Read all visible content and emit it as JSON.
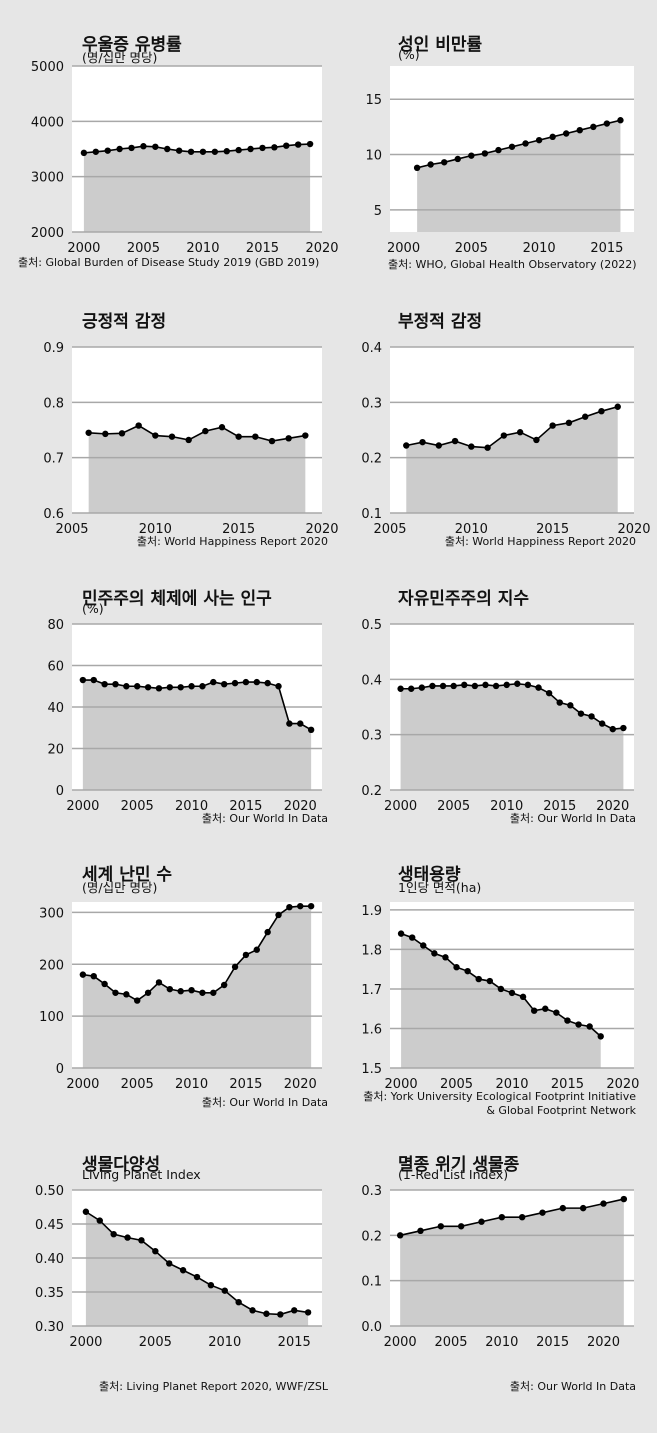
{
  "source_prefix": "출처:",
  "chart_data": [
    {
      "id": "c1",
      "type": "area",
      "title": "우울증 유병률",
      "subtitle": "(명/십만 명당)",
      "source": [
        "Global Burden of Disease Study 2019 (GBD 2019)"
      ],
      "x": [
        2000,
        2001,
        2002,
        2003,
        2004,
        2005,
        2006,
        2007,
        2008,
        2009,
        2010,
        2011,
        2012,
        2013,
        2014,
        2015,
        2016,
        2017,
        2018,
        2019
      ],
      "y": [
        3430,
        3450,
        3470,
        3500,
        3520,
        3550,
        3540,
        3500,
        3470,
        3450,
        3450,
        3450,
        3460,
        3480,
        3500,
        3520,
        3530,
        3560,
        3580,
        3590
      ],
      "xlim": [
        1999,
        2020
      ],
      "ylim": [
        2000,
        5000
      ],
      "yticks": [
        2000,
        3000,
        4000,
        5000
      ],
      "xticks": [
        2000,
        2005,
        2010,
        2015,
        2020
      ],
      "grid": true,
      "legend": "none"
    },
    {
      "id": "c2",
      "type": "area",
      "title": "성인 비만률",
      "subtitle": "(%)",
      "source": [
        "WHO, Global Health Observatory (2022)"
      ],
      "x": [
        2001,
        2002,
        2003,
        2004,
        2005,
        2006,
        2007,
        2008,
        2009,
        2010,
        2011,
        2012,
        2013,
        2014,
        2015,
        2016
      ],
      "y": [
        8.8,
        9.1,
        9.3,
        9.6,
        9.9,
        10.1,
        10.4,
        10.7,
        11.0,
        11.3,
        11.6,
        11.9,
        12.2,
        12.5,
        12.8,
        13.1
      ],
      "xlim": [
        1999,
        2017
      ],
      "ylim": [
        3,
        18
      ],
      "yticks": [
        5,
        10,
        15
      ],
      "xticks": [
        2000,
        2005,
        2010,
        2015
      ],
      "grid": true,
      "legend": "none"
    },
    {
      "id": "c3",
      "type": "area",
      "title": "긍정적 감정",
      "subtitle": "",
      "source": [
        "World Happiness Report 2020"
      ],
      "x": [
        2006,
        2007,
        2008,
        2009,
        2010,
        2011,
        2012,
        2013,
        2014,
        2015,
        2016,
        2017,
        2018,
        2019
      ],
      "y": [
        0.745,
        0.743,
        0.744,
        0.758,
        0.74,
        0.738,
        0.732,
        0.748,
        0.755,
        0.738,
        0.738,
        0.73,
        0.735,
        0.74
      ],
      "xlim": [
        2005,
        2020
      ],
      "ylim": [
        0.6,
        0.9
      ],
      "yticks": [
        0.6,
        0.7,
        0.8,
        0.9
      ],
      "xticks": [
        2005,
        2010,
        2015,
        2020
      ],
      "grid": true,
      "legend": "none"
    },
    {
      "id": "c4",
      "type": "area",
      "title": "부정적 감정",
      "subtitle": "",
      "source": [
        "World Happiness Report 2020"
      ],
      "x": [
        2006,
        2007,
        2008,
        2009,
        2010,
        2011,
        2012,
        2013,
        2014,
        2015,
        2016,
        2017,
        2018,
        2019
      ],
      "y": [
        0.222,
        0.228,
        0.222,
        0.23,
        0.22,
        0.218,
        0.24,
        0.246,
        0.232,
        0.258,
        0.263,
        0.274,
        0.284,
        0.292
      ],
      "xlim": [
        2005,
        2020
      ],
      "ylim": [
        0.1,
        0.4
      ],
      "yticks": [
        0.1,
        0.2,
        0.3,
        0.4
      ],
      "xticks": [
        2005,
        2010,
        2015,
        2020
      ],
      "grid": true,
      "legend": "none"
    },
    {
      "id": "c5",
      "type": "area",
      "title": "민주주의 체제에 사는 인구",
      "subtitle": "(%)",
      "source": [
        "Our World In Data"
      ],
      "x": [
        2000,
        2001,
        2002,
        2003,
        2004,
        2005,
        2006,
        2007,
        2008,
        2009,
        2010,
        2011,
        2012,
        2013,
        2014,
        2015,
        2016,
        2017,
        2018,
        2019,
        2020,
        2021
      ],
      "y": [
        53,
        53,
        51,
        51,
        50,
        50,
        49.5,
        49,
        49.5,
        49.5,
        50,
        50,
        52,
        51,
        51.5,
        52,
        52,
        51.5,
        50,
        32,
        32,
        29
      ],
      "xlim": [
        1999,
        2022
      ],
      "ylim": [
        0,
        80
      ],
      "yticks": [
        0,
        20,
        40,
        60,
        80
      ],
      "xticks": [
        2000,
        2005,
        2010,
        2015,
        2020
      ],
      "grid": true,
      "legend": "none"
    },
    {
      "id": "c6",
      "type": "area",
      "title": "자유민주주의 지수",
      "subtitle": "",
      "source": [
        "Our World In Data"
      ],
      "x": [
        2000,
        2001,
        2002,
        2003,
        2004,
        2005,
        2006,
        2007,
        2008,
        2009,
        2010,
        2011,
        2012,
        2013,
        2014,
        2015,
        2016,
        2017,
        2018,
        2019,
        2020,
        2021
      ],
      "y": [
        0.383,
        0.383,
        0.385,
        0.388,
        0.388,
        0.388,
        0.39,
        0.388,
        0.39,
        0.388,
        0.39,
        0.392,
        0.39,
        0.385,
        0.375,
        0.358,
        0.353,
        0.338,
        0.333,
        0.32,
        0.31,
        0.312
      ],
      "xlim": [
        1999,
        2022
      ],
      "ylim": [
        0.2,
        0.5
      ],
      "yticks": [
        0.2,
        0.3,
        0.4,
        0.5
      ],
      "xticks": [
        2000,
        2005,
        2010,
        2015,
        2020
      ],
      "grid": true,
      "legend": "none"
    },
    {
      "id": "c7",
      "type": "area",
      "title": "세계 난민 수",
      "subtitle": "(명/십만 명당)",
      "source": [
        "Our World In Data"
      ],
      "x": [
        2000,
        2001,
        2002,
        2003,
        2004,
        2005,
        2006,
        2007,
        2008,
        2009,
        2010,
        2011,
        2012,
        2013,
        2014,
        2015,
        2016,
        2017,
        2018,
        2019,
        2020,
        2021
      ],
      "y": [
        180,
        177,
        162,
        145,
        142,
        130,
        145,
        165,
        152,
        148,
        150,
        145,
        145,
        160,
        195,
        218,
        228,
        262,
        295,
        310,
        312,
        312
      ],
      "xlim": [
        1999,
        2022
      ],
      "ylim": [
        0,
        320
      ],
      "yticks": [
        0,
        100,
        200,
        300
      ],
      "xticks": [
        2000,
        2005,
        2010,
        2015,
        2020
      ],
      "grid": true,
      "legend": "none"
    },
    {
      "id": "c8",
      "type": "area",
      "title": "생태용량",
      "subtitle": "1인당 면적(ha)",
      "source": [
        "York University Ecological Footprint Initiative",
        "& Global Footprint Network"
      ],
      "x": [
        2000,
        2001,
        2002,
        2003,
        2004,
        2005,
        2006,
        2007,
        2008,
        2009,
        2010,
        2011,
        2012,
        2013,
        2014,
        2015,
        2016,
        2017,
        2018
      ],
      "y": [
        1.84,
        1.83,
        1.81,
        1.79,
        1.78,
        1.755,
        1.745,
        1.725,
        1.72,
        1.7,
        1.69,
        1.68,
        1.645,
        1.65,
        1.64,
        1.62,
        1.61,
        1.605,
        1.58
      ],
      "xlim": [
        1999,
        2021
      ],
      "ylim": [
        1.5,
        1.92
      ],
      "yticks": [
        1.5,
        1.6,
        1.7,
        1.8,
        1.9
      ],
      "xticks": [
        2000,
        2005,
        2010,
        2015,
        2020
      ],
      "grid": true,
      "legend": "none"
    },
    {
      "id": "c9",
      "type": "area",
      "title": "생물다양성",
      "subtitle": "Living Planet Index",
      "source": [
        "Living Planet Report 2020, WWF/ZSL"
      ],
      "x": [
        2000,
        2001,
        2002,
        2003,
        2004,
        2005,
        2006,
        2007,
        2008,
        2009,
        2010,
        2011,
        2012,
        2013,
        2014,
        2015,
        2016
      ],
      "y": [
        0.468,
        0.455,
        0.435,
        0.43,
        0.426,
        0.41,
        0.392,
        0.382,
        0.372,
        0.36,
        0.352,
        0.335,
        0.323,
        0.318,
        0.317,
        0.323,
        0.32
      ],
      "xlim": [
        1999,
        2017
      ],
      "ylim": [
        0.3,
        0.5
      ],
      "yticks": [
        0.3,
        0.35,
        0.4,
        0.45,
        0.5
      ],
      "xticks": [
        2000,
        2005,
        2010,
        2015
      ],
      "ytick_labels": [
        "0.30",
        "0.35",
        "0.40",
        "0.45",
        "0.50"
      ],
      "grid": true,
      "legend": "none"
    },
    {
      "id": "c10",
      "type": "area",
      "title": "멸종 위기 생물종",
      "subtitle": "(1-Red List Index)",
      "source": [
        "Our World In Data"
      ],
      "x": [
        2000,
        2002,
        2004,
        2006,
        2008,
        2010,
        2012,
        2014,
        2016,
        2018,
        2020,
        2022
      ],
      "y": [
        0.2,
        0.21,
        0.22,
        0.22,
        0.23,
        0.24,
        0.24,
        0.25,
        0.26,
        0.26,
        0.27,
        0.28
      ],
      "xlim": [
        1999,
        2023
      ],
      "ylim": [
        0,
        0.3
      ],
      "yticks": [
        0,
        0.1,
        0.2,
        0.3
      ],
      "xticks": [
        2000,
        2005,
        2010,
        2015,
        2020
      ],
      "ytick_labels": [
        "0.0",
        "0.1",
        "0.2",
        "0.3"
      ],
      "grid": true,
      "legend": "none"
    }
  ]
}
